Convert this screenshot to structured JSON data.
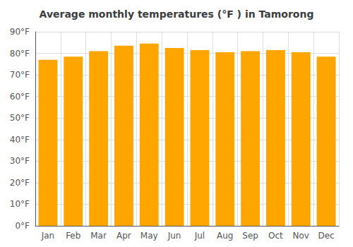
{
  "chart_data": {
    "type": "bar",
    "title": "Average monthly temperatures (°F ) in Tamorong",
    "categories": [
      "Jan",
      "Feb",
      "Mar",
      "Apr",
      "May",
      "Jun",
      "Jul",
      "Aug",
      "Sep",
      "Oct",
      "Nov",
      "Dec"
    ],
    "values": [
      77.0,
      78.5,
      81.0,
      83.5,
      84.5,
      82.5,
      81.5,
      80.5,
      81.0,
      81.5,
      80.5,
      78.5
    ],
    "color": "#FFA500",
    "ylim": [
      0,
      90
    ],
    "yticks": [
      {
        "value": 0,
        "label": "0°F"
      },
      {
        "value": 10,
        "label": "10°F"
      },
      {
        "value": 20,
        "label": "20°F"
      },
      {
        "value": 30,
        "label": "30°F"
      },
      {
        "value": 40,
        "label": "40°F"
      },
      {
        "value": 50,
        "label": "50°F"
      },
      {
        "value": 60,
        "label": "60°F"
      },
      {
        "value": 70,
        "label": "70°F"
      },
      {
        "value": 80,
        "label": "80°F"
      },
      {
        "value": 90,
        "label": "90°F"
      }
    ],
    "grid": true
  }
}
